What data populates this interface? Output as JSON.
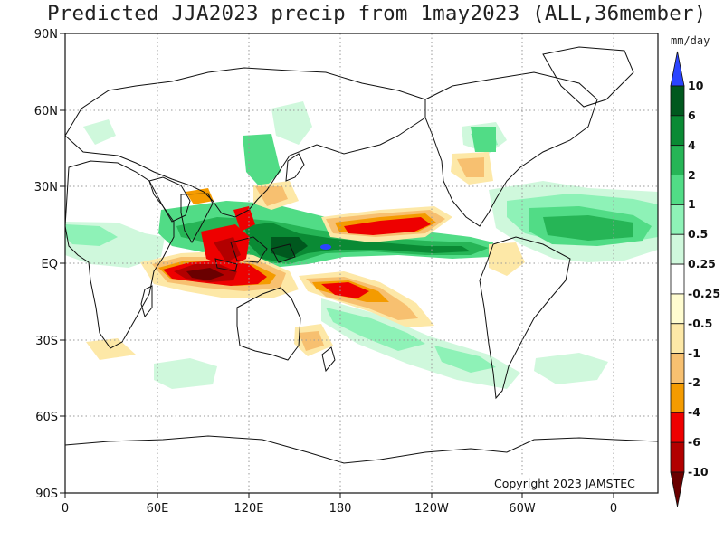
{
  "title": "Predicted JJA2023 precip from 1may2023 (ALL,36member)",
  "units": "mm/day",
  "copyright": "Copyright 2023 JAMSTEC",
  "lat_ticks": [
    "90N",
    "60N",
    "30N",
    "EQ",
    "30S",
    "60S",
    "90S"
  ],
  "lon_ticks": [
    "0",
    "60E",
    "120E",
    "180",
    "120W",
    "60W",
    "0"
  ],
  "colorbar": {
    "labels": [
      "10",
      "6",
      "4",
      "2",
      "1",
      "0.5",
      "0.25",
      "-0.25",
      "-0.5",
      "-1",
      "-2",
      "-4",
      "-6",
      "-10"
    ],
    "colors": [
      "#2b44ff",
      "#00581e",
      "#0a8a34",
      "#26b556",
      "#51dc86",
      "#8ef2b7",
      "#cff8dc",
      "#ffffff",
      "#fffcd0",
      "#fde8a7",
      "#f7c070",
      "#f49b00",
      "#ee0000",
      "#b20000",
      "#6a0000"
    ]
  },
  "map": {
    "land_color": "#ffffff",
    "grid": "dotted"
  }
}
